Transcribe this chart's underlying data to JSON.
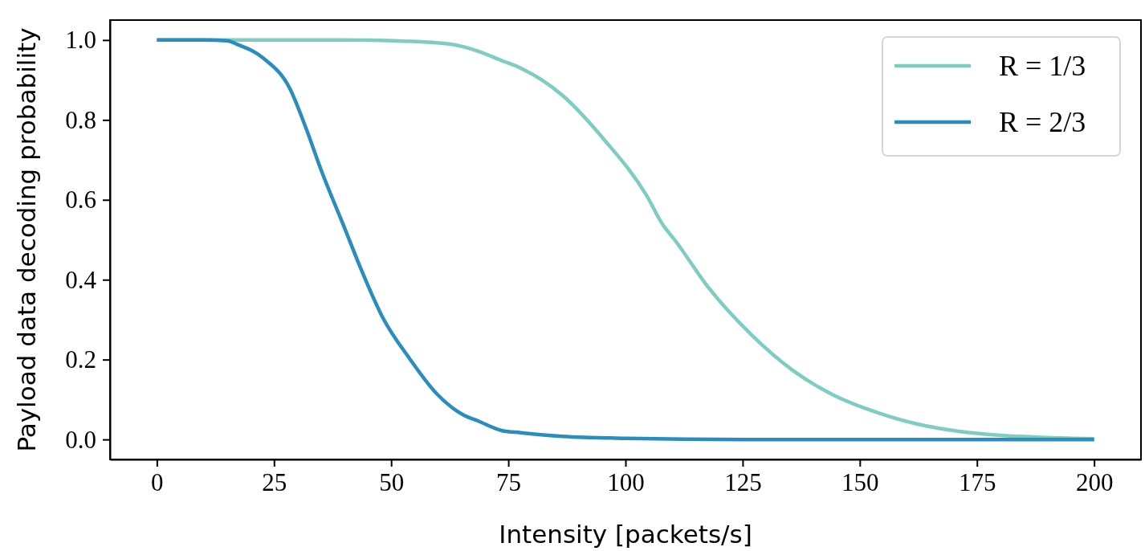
{
  "chart_data": {
    "type": "line",
    "xlabel": "Intensity [packets/s]",
    "ylabel": "Payload data decoding probability",
    "xlim": [
      -10,
      210
    ],
    "xticks": [
      0,
      25,
      50,
      75,
      100,
      125,
      150,
      175,
      200
    ],
    "ylim": [
      -0.05,
      1.05
    ],
    "yticks": [
      {
        "value": 0,
        "label": "0.0"
      },
      {
        "value": 0.2,
        "label": "0.2"
      },
      {
        "value": 0.4,
        "label": "0.4"
      },
      {
        "value": 0.6,
        "label": "0.6"
      },
      {
        "value": 0.8,
        "label": "0.8"
      },
      {
        "value": 1,
        "label": "1.0"
      }
    ],
    "grid": false,
    "legend": "top right",
    "line_style": "solid",
    "marker": "none",
    "series": [
      {
        "name": "R = 1/3",
        "color": "#7fcdc2",
        "x": [
          0,
          20,
          40,
          51,
          62.4,
          68.6,
          73.7,
          77.6,
          86.5,
          95.5,
          104.4,
          108,
          110.6,
          117.8,
          126.8,
          135.7,
          144.6,
          153.6,
          162.5,
          171.4,
          180.5,
          190,
          200
        ],
        "values": [
          1,
          1,
          1,
          0.998,
          0.99,
          0.972,
          0.948,
          0.93,
          0.862,
          0.75,
          0.613,
          0.537,
          0.498,
          0.379,
          0.263,
          0.173,
          0.11,
          0.068,
          0.038,
          0.02,
          0.01,
          0.005,
          0.002
        ]
      },
      {
        "name": "R = 2/3",
        "color": "#2b8cbe",
        "x": [
          0,
          10,
          15,
          17,
          22.8,
          28.4,
          31.8,
          35.2,
          39.8,
          43.2,
          48.3,
          53.9,
          59.6,
          65.3,
          68.6,
          73.7,
          77.6,
          86.5,
          100,
          125,
          150,
          175,
          200
        ],
        "values": [
          1,
          1,
          0.998,
          0.99,
          0.954,
          0.878,
          0.78,
          0.67,
          0.537,
          0.437,
          0.303,
          0.203,
          0.116,
          0.062,
          0.046,
          0.022,
          0.017,
          0.008,
          0.003,
          0,
          0,
          0,
          0
        ]
      }
    ]
  }
}
